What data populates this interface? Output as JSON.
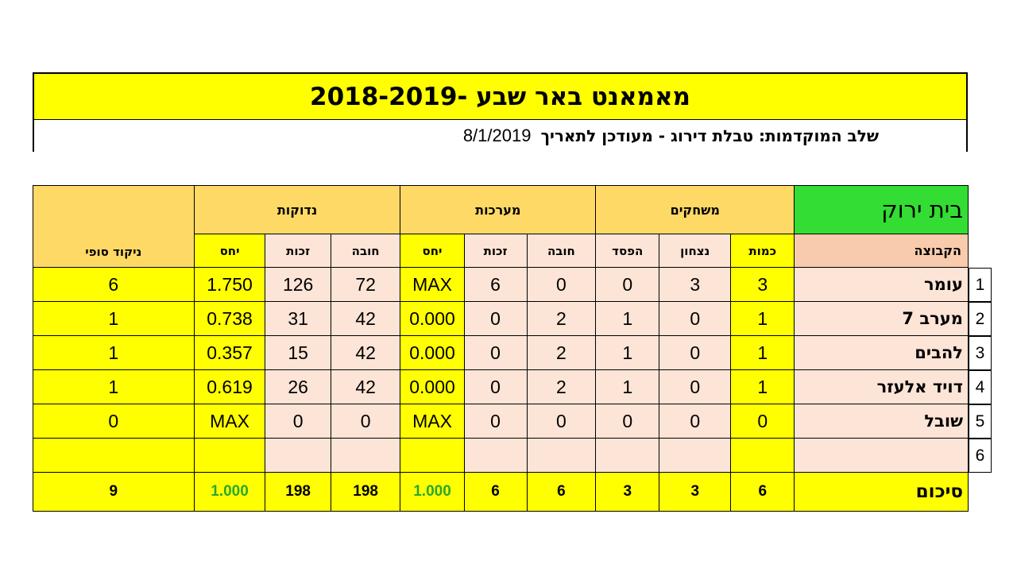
{
  "header": {
    "title": "מאמאנט באר שבע -2018-2019",
    "subtitle": "שלב המוקדמות: טבלת דירוג -  מעודכן לתאריך",
    "date": "8/1/2019"
  },
  "table": {
    "group_name": "בית ירוק",
    "groups": {
      "games": "משחקים",
      "sets": "מערכות",
      "points": "נדוקות"
    },
    "columns": {
      "team": "הקבוצה",
      "count": "כמות",
      "wins": "נצחון",
      "losses": "הפסד",
      "sets_debt": "חובה",
      "sets_credit": "זכות",
      "sets_ratio": "יחס",
      "pts_debt": "חובה",
      "pts_credit": "זכות",
      "pts_ratio": "יחס",
      "final_score": "ניקוד סופי"
    },
    "rows": [
      {
        "rank": "1",
        "team": "עומר",
        "count": "3",
        "wins": "3",
        "losses": "0",
        "sets_debt": "0",
        "sets_credit": "6",
        "sets_ratio": "MAX",
        "pts_debt": "72",
        "pts_credit": "126",
        "pts_ratio": "1.750",
        "final": "6"
      },
      {
        "rank": "2",
        "team": "מערב 7",
        "count": "1",
        "wins": "0",
        "losses": "1",
        "sets_debt": "2",
        "sets_credit": "0",
        "sets_ratio": "0.000",
        "pts_debt": "42",
        "pts_credit": "31",
        "pts_ratio": "0.738",
        "final": "1"
      },
      {
        "rank": "3",
        "team": "להבים",
        "count": "1",
        "wins": "0",
        "losses": "1",
        "sets_debt": "2",
        "sets_credit": "0",
        "sets_ratio": "0.000",
        "pts_debt": "42",
        "pts_credit": "15",
        "pts_ratio": "0.357",
        "final": "1"
      },
      {
        "rank": "4",
        "team": "דויד אלעזר",
        "count": "1",
        "wins": "0",
        "losses": "1",
        "sets_debt": "2",
        "sets_credit": "0",
        "sets_ratio": "0.000",
        "pts_debt": "42",
        "pts_credit": "26",
        "pts_ratio": "0.619",
        "final": "1"
      },
      {
        "rank": "5",
        "team": "שובל",
        "count": "0",
        "wins": "0",
        "losses": "0",
        "sets_debt": "0",
        "sets_credit": "0",
        "sets_ratio": "MAX",
        "pts_debt": "0",
        "pts_credit": "0",
        "pts_ratio": "MAX",
        "final": "0"
      },
      {
        "rank": "6",
        "team": "",
        "count": "",
        "wins": "",
        "losses": "",
        "sets_debt": "",
        "sets_credit": "",
        "sets_ratio": "",
        "pts_debt": "",
        "pts_credit": "",
        "pts_ratio": "",
        "final": ""
      }
    ],
    "summary": {
      "label": "סיכום",
      "count": "6",
      "wins": "3",
      "losses": "3",
      "sets_debt": "6",
      "sets_credit": "6",
      "sets_ratio": "1.000",
      "pts_debt": "198",
      "pts_credit": "198",
      "pts_ratio": "1.000",
      "final": "9"
    }
  },
  "colors": {
    "yellow": "#ffff00",
    "peach": "#fce4d6",
    "orange_header": "#ffd966",
    "salmon_header": "#f8cbad",
    "green": "#33dd33",
    "ratio_green": "#2ba82b"
  }
}
